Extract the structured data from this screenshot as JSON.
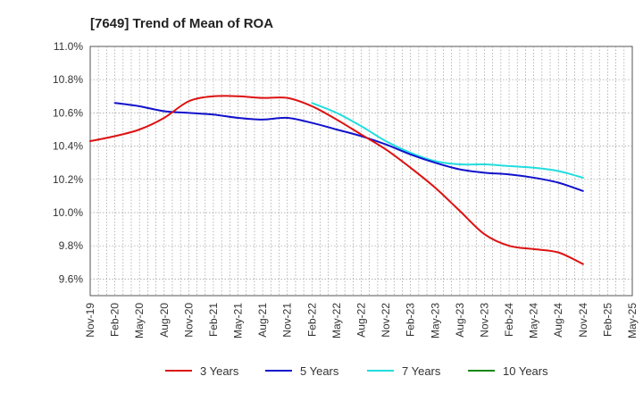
{
  "chart_data": {
    "type": "line",
    "title": "[7649]  Trend of Mean of ROA",
    "xlabel": "",
    "ylabel": "",
    "ylim": [
      9.5,
      11.0
    ],
    "y_ticks": [
      9.6,
      9.8,
      10.0,
      10.2,
      10.4,
      10.6,
      10.8,
      11.0
    ],
    "y_tick_labels": [
      "9.6%",
      "9.8%",
      "10.0%",
      "10.2%",
      "10.4%",
      "10.6%",
      "10.8%",
      "11.0%"
    ],
    "x_tick_labels": [
      "Nov-19",
      "Feb-20",
      "May-20",
      "Aug-20",
      "Nov-20",
      "Feb-21",
      "May-21",
      "Aug-21",
      "Nov-21",
      "Feb-22",
      "May-22",
      "Aug-22",
      "Nov-22",
      "Feb-23",
      "May-23",
      "Aug-23",
      "Nov-23",
      "Feb-24",
      "May-24",
      "Aug-24",
      "Nov-24",
      "Feb-25",
      "May-25"
    ],
    "x_range_months": [
      0,
      66
    ],
    "grid": true,
    "legend_position": "bottom",
    "series": [
      {
        "name": "3 Years",
        "color": "#dd1111",
        "months": [
          0,
          3,
          6,
          9,
          12,
          15,
          18,
          21,
          24,
          27,
          30,
          33,
          36,
          39,
          42,
          45,
          48,
          51,
          54,
          57,
          60
        ],
        "values": [
          10.43,
          10.46,
          10.5,
          10.57,
          10.67,
          10.7,
          10.7,
          10.69,
          10.69,
          10.64,
          10.56,
          10.47,
          10.38,
          10.27,
          10.15,
          10.01,
          9.87,
          9.8,
          9.78,
          9.76,
          9.69
        ]
      },
      {
        "name": "5 Years",
        "color": "#1111cc",
        "months": [
          3,
          6,
          9,
          12,
          15,
          18,
          21,
          24,
          27,
          30,
          33,
          36,
          39,
          42,
          45,
          48,
          51,
          54,
          57,
          60
        ],
        "values": [
          10.66,
          10.64,
          10.61,
          10.6,
          10.59,
          10.57,
          10.56,
          10.57,
          10.54,
          10.5,
          10.46,
          10.41,
          10.35,
          10.3,
          10.26,
          10.24,
          10.23,
          10.21,
          10.18,
          10.13
        ]
      },
      {
        "name": "7 Years",
        "color": "#22dddd",
        "months": [
          27,
          30,
          33,
          36,
          39,
          42,
          45,
          48,
          51,
          54,
          57,
          60
        ],
        "values": [
          10.66,
          10.6,
          10.52,
          10.43,
          10.36,
          10.31,
          10.29,
          10.29,
          10.28,
          10.27,
          10.25,
          10.21
        ]
      },
      {
        "name": "10 Years",
        "color": "#118811",
        "months": [],
        "values": []
      }
    ]
  }
}
